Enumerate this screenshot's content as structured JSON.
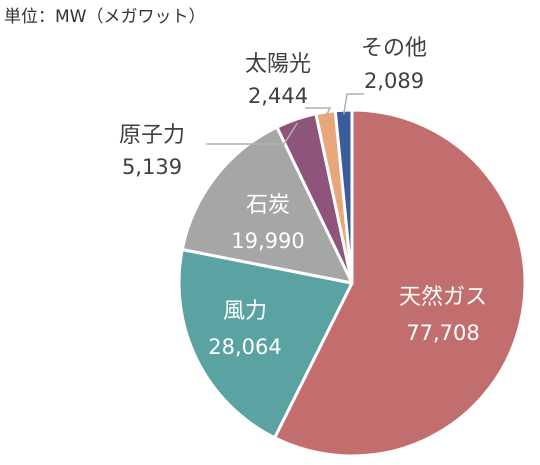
{
  "unit_label": "単位：MW（メガワット）",
  "chart_data": {
    "type": "pie",
    "title": "",
    "start_angle_deg": 0,
    "direction": "clockwise",
    "slices": [
      {
        "name": "天然ガス",
        "value": 77708,
        "value_label": "77,708",
        "color": "#C36E6E",
        "label_position": "inside",
        "text_color": "#ffffff"
      },
      {
        "name": "風力",
        "value": 28064,
        "value_label": "28,064",
        "color": "#5BA3A3",
        "label_position": "inside",
        "text_color": "#ffffff"
      },
      {
        "name": "石炭",
        "value": 19990,
        "value_label": "19,990",
        "color": "#A6A6A6",
        "label_position": "inside",
        "text_color": "#ffffff"
      },
      {
        "name": "原子力",
        "value": 5139,
        "value_label": "5,139",
        "color": "#8F5479",
        "label_position": "outside",
        "text_color": "#404040"
      },
      {
        "name": "太陽光",
        "value": 2444,
        "value_label": "2,444",
        "color": "#E8A77A",
        "label_position": "outside",
        "text_color": "#404040"
      },
      {
        "name": "その他",
        "value": 2089,
        "value_label": "2,089",
        "color": "#3B5D9C",
        "label_position": "outside",
        "text_color": "#404040"
      }
    ]
  }
}
